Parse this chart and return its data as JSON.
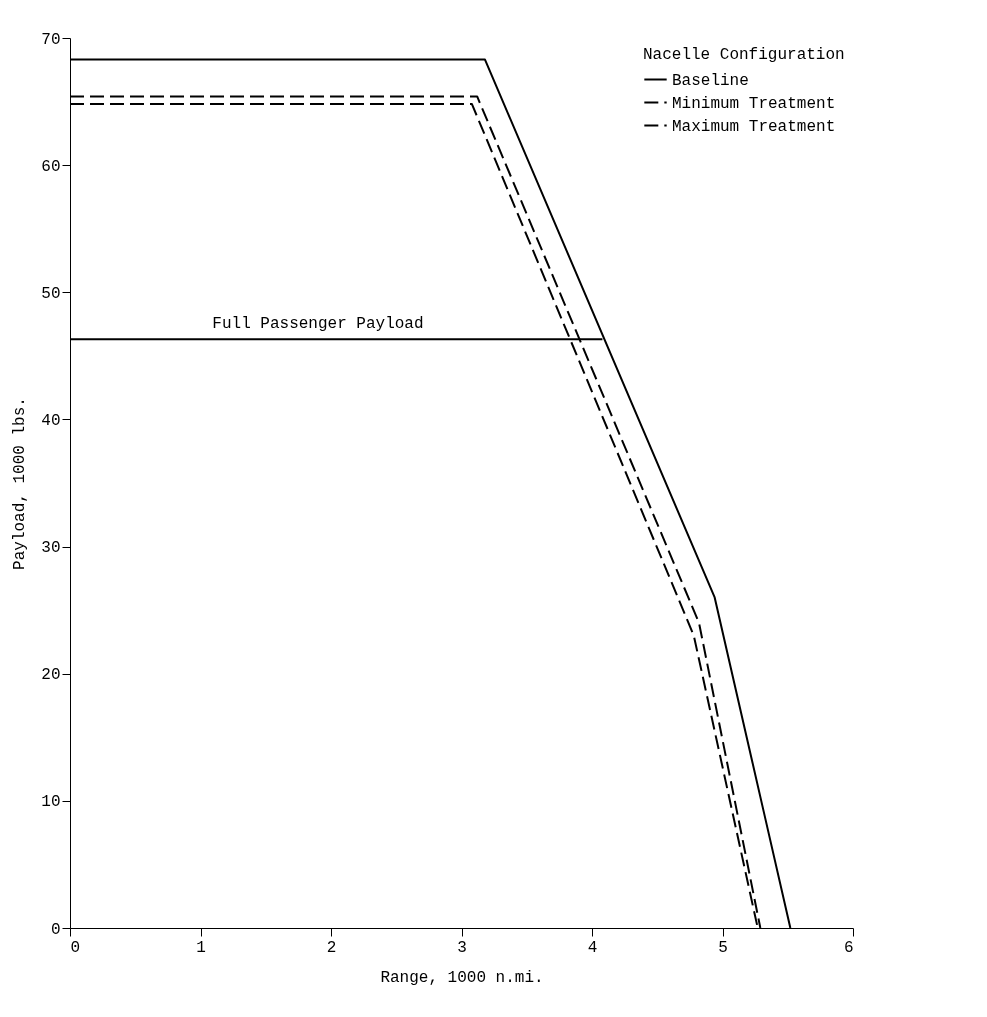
{
  "chart_data": {
    "type": "line",
    "xlabel": "Range, 1000 n.mi.",
    "ylabel": "Payload, 1000 lbs.",
    "legend_title": "Nacelle Configuration",
    "legend": "top right",
    "grid": false,
    "marker": "none",
    "xlim": [
      0,
      6
    ],
    "xticks": [
      0,
      1,
      2,
      3,
      4,
      5,
      6
    ],
    "ylim": [
      0,
      70
    ],
    "yticks": [
      0,
      10,
      20,
      30,
      40,
      50,
      60,
      70
    ],
    "series": [
      {
        "name": "Baseline",
        "color": "#000000",
        "line_style": "solid",
        "x": [
          0,
          3.18,
          4.94,
          5.52
        ],
        "values": [
          68.3,
          68.3,
          26.0,
          0
        ]
      },
      {
        "name": "Minimum Treatment",
        "color": "#000000",
        "line_style": "dashed",
        "x": [
          0,
          3.12,
          4.82,
          5.29
        ],
        "values": [
          65.4,
          65.4,
          24.0,
          0
        ]
      },
      {
        "name": "Maximum Treatment",
        "color": "#000000",
        "line_style": "dashed",
        "x": [
          0,
          3.08,
          4.78,
          5.27
        ],
        "values": [
          64.8,
          64.8,
          23.0,
          0
        ]
      },
      {
        "color": "#000000",
        "line_style": "solid",
        "x": [
          0,
          4.08
        ],
        "values": [
          46.3,
          46.3
        ]
      }
    ],
    "annotations": [
      {
        "text": "Full Passenger Payload",
        "x": 1.9,
        "y": 46.3
      }
    ]
  }
}
